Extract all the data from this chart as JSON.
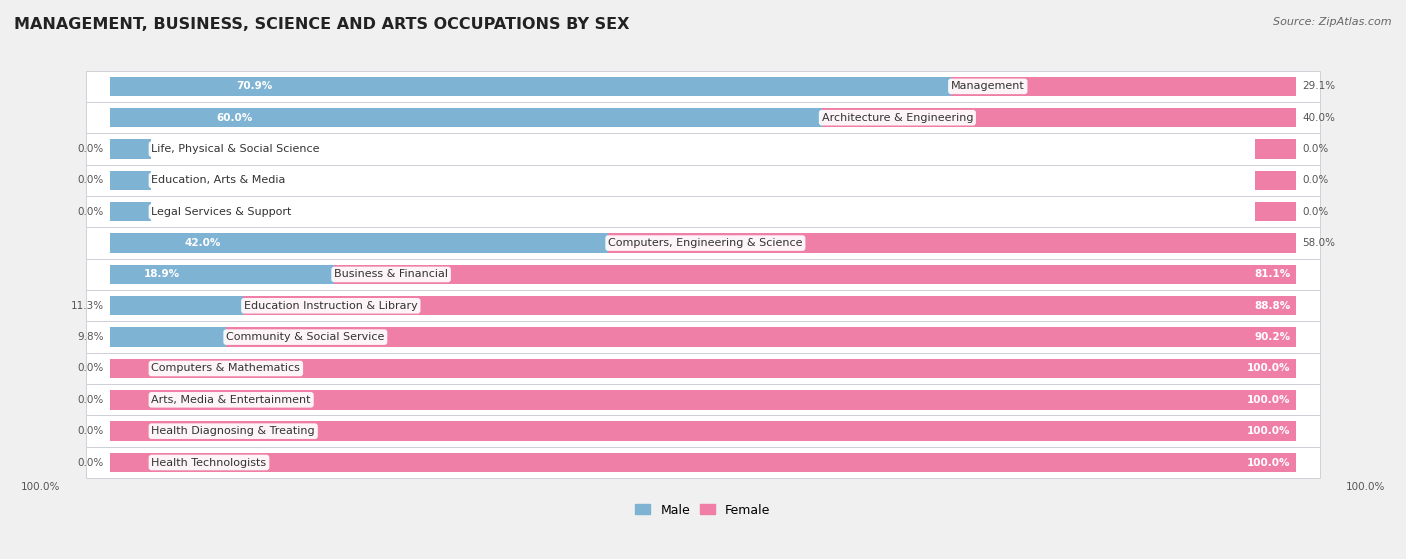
{
  "title": "MANAGEMENT, BUSINESS, SCIENCE AND ARTS OCCUPATIONS BY SEX",
  "source": "Source: ZipAtlas.com",
  "categories": [
    "Management",
    "Architecture & Engineering",
    "Life, Physical & Social Science",
    "Education, Arts & Media",
    "Legal Services & Support",
    "Computers, Engineering & Science",
    "Business & Financial",
    "Education Instruction & Library",
    "Community & Social Service",
    "Computers & Mathematics",
    "Arts, Media & Entertainment",
    "Health Diagnosing & Treating",
    "Health Technologists"
  ],
  "male": [
    70.9,
    60.0,
    0.0,
    0.0,
    0.0,
    42.0,
    18.9,
    11.3,
    9.8,
    0.0,
    0.0,
    0.0,
    0.0
  ],
  "female": [
    29.1,
    40.0,
    0.0,
    0.0,
    0.0,
    58.0,
    81.1,
    88.8,
    90.2,
    100.0,
    100.0,
    100.0,
    100.0
  ],
  "male_color": "#7fb3d3",
  "female_color": "#f07fa8",
  "male_label": "Male",
  "female_label": "Female",
  "bg_color": "#f0f0f0",
  "row_bg": "#ffffff",
  "row_alt_bg": "#e8e8ee",
  "bar_height": 0.62,
  "title_fontsize": 11.5,
  "label_fontsize": 8.0,
  "value_fontsize": 7.5
}
